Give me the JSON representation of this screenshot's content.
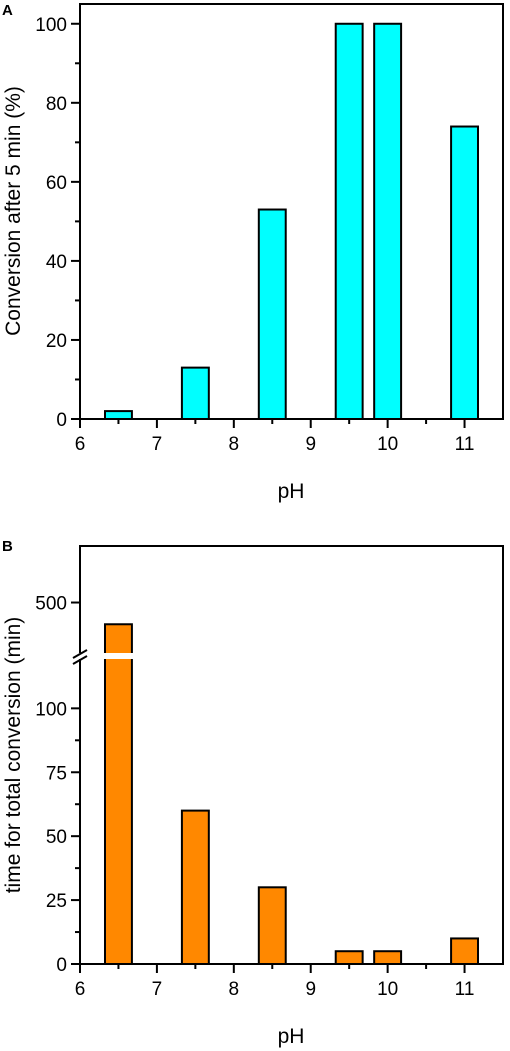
{
  "chart_data": [
    {
      "panel": "A",
      "type": "bar",
      "xlabel": "pH",
      "ylabel": "Conversion after 5 min (%)",
      "bar_color": "#00FFFF",
      "xlim": [
        6,
        11.5
      ],
      "ylim": [
        0,
        105
      ],
      "xticks": [
        6,
        7,
        8,
        9,
        10,
        11
      ],
      "yticks": [
        0,
        20,
        40,
        60,
        80,
        100
      ],
      "x": [
        6.5,
        7.5,
        8.5,
        9.5,
        10,
        11
      ],
      "values": [
        2,
        13,
        53,
        100,
        100,
        74
      ],
      "bar_width": 0.35,
      "grid": false
    },
    {
      "panel": "B",
      "type": "bar",
      "xlabel": "pH",
      "ylabel": "time for total conversion (min)",
      "bar_color": "#FF8800",
      "xlim": [
        6,
        11.5
      ],
      "ylim": [
        0,
        500
      ],
      "axis_break": [
        115,
        480
      ],
      "xticks": [
        6,
        7,
        8,
        9,
        10,
        11
      ],
      "yticks": [
        0,
        25,
        50,
        75,
        100,
        500
      ],
      "x": [
        6.5,
        7.5,
        8.5,
        9.5,
        10,
        11
      ],
      "values": [
        490,
        60,
        30,
        5,
        5,
        10
      ],
      "bar_width": 0.35,
      "grid": false
    }
  ]
}
